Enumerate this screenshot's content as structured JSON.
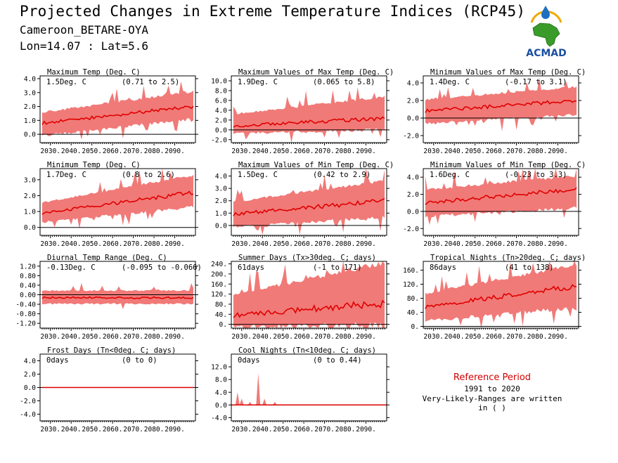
{
  "header": {
    "title": "Projected Changes in Extreme Temperature Indices (RCP45)",
    "location": "Cameroon_BETARE-OYA",
    "coords": "Lon=14.07 : Lat=5.6"
  },
  "logo": {
    "text": "ACMAD",
    "icon": "africa-map-logo"
  },
  "reference": {
    "title": "Reference Period",
    "years": "1991 to 2020",
    "note": "Very-Likely-Ranges are written in ( )"
  },
  "colors": {
    "band": "#f07a78",
    "median": "#e00000",
    "zero": "#000000",
    "ref_title": "#d40000"
  },
  "chart_data": [
    {
      "id": "tmax",
      "type": "area",
      "title": "Maximum Temp (Deg. C)",
      "value_text": "1.5Deg. C",
      "range_text": "(0.71 to 2.5)",
      "x": [
        2025,
        2100
      ],
      "x_ticks": [
        "2030.",
        "2040.",
        "2050.",
        "2060.",
        "2070.",
        "2080.",
        "2090."
      ],
      "ylim": [
        -0.6,
        4.2
      ],
      "y_ticks": [
        0.0,
        1.0,
        2.0,
        3.0,
        4.0
      ],
      "y_tick_labels": [
        "0.0",
        "1.0",
        "2.0",
        "3.0",
        "4.0"
      ],
      "median_start": 0.8,
      "median_end": 2.0,
      "lower_start": 0.0,
      "lower_end": 1.2,
      "upper_start": 1.5,
      "upper_end": 3.0,
      "zero_line": 0
    },
    {
      "id": "txx",
      "type": "area",
      "title": "Maximum Values of Max Temp (Deg. C)",
      "value_text": "1.9Deg. C",
      "range_text": "(0.065 to 5.8)",
      "x": [
        2025,
        2100
      ],
      "x_ticks": [
        "2030.",
        "2040.",
        "2050.",
        "2060.",
        "2070.",
        "2080.",
        "2090."
      ],
      "ylim": [
        -2.6,
        11
      ],
      "y_ticks": [
        -2.0,
        0.0,
        2.0,
        4.0,
        6.0,
        8.0,
        10.0
      ],
      "y_tick_labels": [
        "-2.0",
        "0.0",
        "2.0",
        "4.0",
        "6.0",
        "8.0",
        "10.0"
      ],
      "median_start": 0.8,
      "median_end": 2.4,
      "lower_start": -0.5,
      "lower_end": 0.4,
      "upper_start": 3.0,
      "upper_end": 6.5,
      "zero_line": 0
    },
    {
      "id": "tnx",
      "type": "area",
      "title": "Minimum Values of Max Temp (Deg. C)",
      "value_text": "1.4Deg. C",
      "range_text": "(-0.17 to 3.1)",
      "x": [
        2025,
        2100
      ],
      "x_ticks": [
        "2030.",
        "2040.",
        "2050.",
        "2060.",
        "2070.",
        "2080.",
        "2090."
      ],
      "ylim": [
        -2.8,
        4.8
      ],
      "y_ticks": [
        -2.0,
        0.0,
        2.0,
        4.0
      ],
      "y_tick_labels": [
        "-2.0",
        "0.0",
        "2.0",
        "4.0"
      ],
      "median_start": 0.8,
      "median_end": 2.0,
      "lower_start": -0.5,
      "lower_end": 0.6,
      "upper_start": 2.0,
      "upper_end": 3.4,
      "zero_line": 0
    },
    {
      "id": "tmin",
      "type": "area",
      "title": "Minimum Temp (Deg. C)",
      "value_text": "1.7Deg. C",
      "range_text": "(0.8 to 2.6)",
      "x": [
        2025,
        2100
      ],
      "x_ticks": [
        "2030.",
        "2040.",
        "2050.",
        "2060.",
        "2070.",
        "2080.",
        "2090."
      ],
      "ylim": [
        -0.5,
        3.7
      ],
      "y_ticks": [
        0.0,
        1.0,
        2.0,
        3.0
      ],
      "y_tick_labels": [
        "0.0",
        "1.0",
        "2.0",
        "3.0"
      ],
      "median_start": 0.9,
      "median_end": 2.2,
      "lower_start": 0.4,
      "lower_end": 1.4,
      "upper_start": 1.5,
      "upper_end": 3.2,
      "zero_line": 0
    },
    {
      "id": "tnn",
      "type": "area",
      "title": "Maximum Values of Min Temp (Deg. C)",
      "value_text": "1.5Deg. C",
      "range_text": "(0.42 to 2.9)",
      "x": [
        2025,
        2100
      ],
      "x_ticks": [
        "2030.",
        "2040.",
        "2050.",
        "2060.",
        "2070.",
        "2080.",
        "2090."
      ],
      "ylim": [
        -0.8,
        4.6
      ],
      "y_ticks": [
        0.0,
        1.0,
        2.0,
        3.0,
        4.0
      ],
      "y_tick_labels": [
        "0.0",
        "1.0",
        "2.0",
        "3.0",
        "4.0"
      ],
      "median_start": 0.9,
      "median_end": 2.0,
      "lower_start": 0.0,
      "lower_end": 0.8,
      "upper_start": 1.8,
      "upper_end": 3.5,
      "zero_line": 0
    },
    {
      "id": "tnmin",
      "type": "area",
      "title": "Minimum Values of Min Temp (Deg. C)",
      "value_text": "1.6Deg. C",
      "range_text": "(-0.23 to 3.3)",
      "x": [
        2025,
        2100
      ],
      "x_ticks": [
        "2030.",
        "2040.",
        "2050.",
        "2060.",
        "2070.",
        "2080.",
        "2090."
      ],
      "ylim": [
        -2.8,
        5.0
      ],
      "y_ticks": [
        -2.0,
        0.0,
        2.0,
        4.0
      ],
      "y_tick_labels": [
        "-2.0",
        "0.0",
        "2.0",
        "4.0"
      ],
      "median_start": 1.0,
      "median_end": 2.6,
      "lower_start": -0.4,
      "lower_end": 0.6,
      "upper_start": 2.4,
      "upper_end": 4.0,
      "zero_line": 0
    },
    {
      "id": "dtr",
      "type": "area",
      "title": "Diurnal Temp Range (Deg. C)",
      "value_text": "-0.13Deg. C",
      "range_text": "(-0.095 to -0.066)",
      "x": [
        2025,
        2100
      ],
      "x_ticks": [
        "2030.",
        "2040.",
        "2050.",
        "2060.",
        "2070.",
        "2080.",
        "2090."
      ],
      "ylim": [
        -1.4,
        1.4
      ],
      "y_ticks": [
        -1.2,
        -0.8,
        -0.4,
        0.0,
        0.4,
        0.8,
        1.2
      ],
      "y_tick_labels": [
        "-1.20",
        "-0.80",
        "-0.40",
        "0.00",
        "0.40",
        "0.80",
        "1.20"
      ],
      "median_start": -0.12,
      "median_end": -0.13,
      "lower_start": -0.35,
      "lower_end": -0.35,
      "upper_start": 0.15,
      "upper_end": 0.15,
      "zero_line": 0
    },
    {
      "id": "su",
      "type": "area",
      "title": "Summer Days (Tx>30deg. C; days)",
      "value_text": "61days",
      "range_text": "(-1 to 171)",
      "x": [
        2025,
        2100
      ],
      "x_ticks": [
        "2030.",
        "2040.",
        "2050.",
        "2060.",
        "2070.",
        "2080.",
        "2090."
      ],
      "ylim": [
        -15,
        250
      ],
      "y_ticks": [
        0,
        40,
        80,
        120,
        160,
        200,
        240
      ],
      "y_tick_labels": [
        "0.",
        "40.",
        "80.",
        "120.",
        "160.",
        "200.",
        "240."
      ],
      "median_start": 35,
      "median_end": 85,
      "lower_start": 0,
      "lower_end": 10,
      "upper_start": 110,
      "upper_end": 235,
      "zero_line": 0
    },
    {
      "id": "tr",
      "type": "area",
      "title": "Tropical Nights (Tn>20deg. C; days)",
      "value_text": "86days",
      "range_text": "(41 to 138)",
      "x": [
        2025,
        2100
      ],
      "x_ticks": [
        "2030.",
        "2040.",
        "2050.",
        "2060.",
        "2070.",
        "2080.",
        "2090."
      ],
      "ylim": [
        -5,
        185
      ],
      "y_ticks": [
        0,
        40,
        80,
        120,
        160
      ],
      "y_tick_labels": [
        "0.",
        "40.",
        "80.",
        "120.",
        "160."
      ],
      "median_start": 55,
      "median_end": 115,
      "lower_start": 20,
      "lower_end": 60,
      "upper_start": 90,
      "upper_end": 170,
      "zero_line": 0
    },
    {
      "id": "fd",
      "type": "area",
      "title": "Frost Days (Tn<0deg. C; days)",
      "value_text": "0days",
      "range_text": "(0 to 0)",
      "x": [
        2025,
        2100
      ],
      "x_ticks": [
        "2030.",
        "2040.",
        "2050.",
        "2060.",
        "2070.",
        "2080.",
        "2090."
      ],
      "ylim": [
        -5,
        5
      ],
      "y_ticks": [
        -4.0,
        -2.0,
        0.0,
        2.0,
        4.0
      ],
      "y_tick_labels": [
        "-4.0",
        "-2.0",
        "0.0",
        "2.0",
        "4.0"
      ],
      "median_start": 0,
      "median_end": 0,
      "lower_start": 0,
      "lower_end": 0,
      "upper_start": 0,
      "upper_end": 0,
      "zero_line": 0
    },
    {
      "id": "cn",
      "type": "area",
      "title": "Cool Nights (Tn<10deg. C; days)",
      "value_text": "0days",
      "range_text": "(0 to 0.44)",
      "x": [
        2025,
        2100
      ],
      "x_ticks": [
        "2030.",
        "2040.",
        "2050.",
        "2060.",
        "2070.",
        "2080.",
        "2090."
      ],
      "ylim": [
        -5,
        16
      ],
      "y_ticks": [
        -4.0,
        0.0,
        4.0,
        8.0,
        12.0
      ],
      "y_tick_labels": [
        "-4.0",
        "0.0",
        "4.0",
        "8.0",
        "12.0"
      ],
      "median_start": 0,
      "median_end": 0,
      "lower_start": 0,
      "lower_end": 0,
      "upper_start": 0,
      "upper_end": 0,
      "zero_line": 0,
      "spikes": [
        [
          2028,
          4
        ],
        [
          2030,
          2
        ],
        [
          2034,
          1
        ],
        [
          2038,
          10
        ],
        [
          2041,
          2
        ],
        [
          2046,
          1
        ]
      ]
    }
  ]
}
